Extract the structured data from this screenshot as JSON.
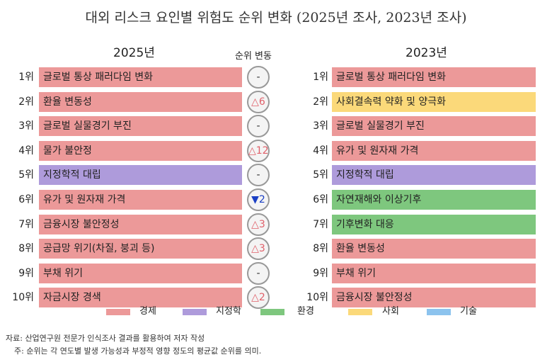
{
  "title": "대외 리스크 요인별 위험도 순위 변화 (2025년 조사, 2023년 조사)",
  "colors": {
    "경제": "#ec9999",
    "지정학": "#ae9bdb",
    "환경": "#7ec77e",
    "사회": "#fbd97a",
    "기술": "#8cc3ee",
    "up": "#e0606a",
    "down": "#1a3fc4"
  },
  "left": {
    "heading": "2025년",
    "change_heading": "순위 변동",
    "rows": [
      {
        "rank": "1위",
        "label": "글로벌 통상 패러다임 변화",
        "category": "경제",
        "change": "-",
        "dir": "same"
      },
      {
        "rank": "2위",
        "label": "환율 변동성",
        "category": "경제",
        "change": "△6",
        "dir": "up"
      },
      {
        "rank": "3위",
        "label": "글로벌 실물경기 부진",
        "category": "경제",
        "change": "-",
        "dir": "same"
      },
      {
        "rank": "4위",
        "label": "물가 불안정",
        "category": "경제",
        "change": "△12",
        "dir": "up"
      },
      {
        "rank": "5위",
        "label": "지정학적 대립",
        "category": "지정학",
        "change": "-",
        "dir": "same"
      },
      {
        "rank": "6위",
        "label": "유가 및 원자재 가격",
        "category": "경제",
        "change": "▼2",
        "dir": "down"
      },
      {
        "rank": "7위",
        "label": "금융시장 불안정성",
        "category": "경제",
        "change": "△3",
        "dir": "up"
      },
      {
        "rank": "8위",
        "label": "공급망 위기(차질, 붕괴 등)",
        "category": "경제",
        "change": "△3",
        "dir": "up"
      },
      {
        "rank": "9위",
        "label": "부채 위기",
        "category": "경제",
        "change": "-",
        "dir": "same"
      },
      {
        "rank": "10위",
        "label": "자금시장 경색",
        "category": "경제",
        "change": "△2",
        "dir": "up"
      }
    ]
  },
  "right": {
    "heading": "2023년",
    "rows": [
      {
        "rank": "1위",
        "label": "글로벌 통상 패러다임 변화",
        "category": "경제"
      },
      {
        "rank": "2위",
        "label": "사회결속력 약화 및 양극화",
        "category": "사회"
      },
      {
        "rank": "3위",
        "label": "글로벌 실물경기 부진",
        "category": "경제"
      },
      {
        "rank": "4위",
        "label": "유가 및 원자재 가격",
        "category": "경제"
      },
      {
        "rank": "5위",
        "label": "지정학적 대립",
        "category": "지정학"
      },
      {
        "rank": "6위",
        "label": "자연재해와 이상기후",
        "category": "환경"
      },
      {
        "rank": "7위",
        "label": "기후변화 대응",
        "category": "환경"
      },
      {
        "rank": "8위",
        "label": "환율 변동성",
        "category": "경제"
      },
      {
        "rank": "9위",
        "label": "부채 위기",
        "category": "경제"
      },
      {
        "rank": "10위",
        "label": "금융시장 불안정성",
        "category": "경제"
      }
    ]
  },
  "legend": [
    {
      "label": "경제",
      "color": "#ec9999"
    },
    {
      "label": "지정학",
      "color": "#ae9bdb"
    },
    {
      "label": "환경",
      "color": "#7ec77e"
    },
    {
      "label": "사회",
      "color": "#fbd97a"
    },
    {
      "label": "기술",
      "color": "#8cc3ee"
    }
  ],
  "notes": {
    "source": "자료: 산업연구원 전문가 인식조사 결과를 활용하여 저자 작성",
    "footnote": "주: 순위는 각 연도별 발생 가능성과 부정적 영향 정도의 평균값 순위를 의미."
  },
  "chart_data": {
    "type": "table",
    "title": "대외 리스크 요인별 위험도 순위 변화 (2025년 조사, 2023년 조사)",
    "columns": [
      "순위",
      "2025년",
      "순위 변동",
      "2023년"
    ],
    "rows": [
      [
        "1위",
        "글로벌 통상 패러다임 변화",
        "-",
        "글로벌 통상 패러다임 변화"
      ],
      [
        "2위",
        "환율 변동성",
        "△6",
        "사회결속력 약화 및 양극화"
      ],
      [
        "3위",
        "글로벌 실물경기 부진",
        "-",
        "글로벌 실물경기 부진"
      ],
      [
        "4위",
        "물가 불안정",
        "△12",
        "유가 및 원자재 가격"
      ],
      [
        "5위",
        "지정학적 대립",
        "-",
        "지정학적 대립"
      ],
      [
        "6위",
        "유가 및 원자재 가격",
        "▼2",
        "자연재해와 이상기후"
      ],
      [
        "7위",
        "금융시장 불안정성",
        "△3",
        "기후변화 대응"
      ],
      [
        "8위",
        "공급망 위기(차질, 붕괴 등)",
        "△3",
        "환율 변동성"
      ],
      [
        "9위",
        "부채 위기",
        "-",
        "부채 위기"
      ],
      [
        "10위",
        "자금시장 경색",
        "△2",
        "금융시장 불안정성"
      ]
    ],
    "categories_2025": [
      "경제",
      "경제",
      "경제",
      "경제",
      "지정학",
      "경제",
      "경제",
      "경제",
      "경제",
      "경제"
    ],
    "categories_2023": [
      "경제",
      "사회",
      "경제",
      "경제",
      "지정학",
      "환경",
      "환경",
      "경제",
      "경제",
      "경제"
    ],
    "legend": [
      "경제",
      "지정학",
      "환경",
      "사회",
      "기술"
    ]
  }
}
